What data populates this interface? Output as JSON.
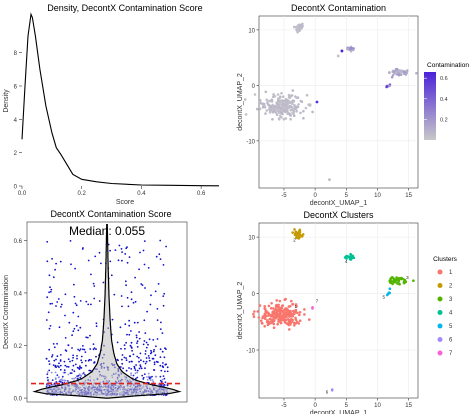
{
  "chart_data": [
    {
      "type": "line",
      "title": "Density, DecontX Contamination Score",
      "xlabel": "Score",
      "ylabel": "Density",
      "xlim": [
        0,
        0.69
      ],
      "ylim": [
        0,
        10.2
      ],
      "xticks": [
        0.0,
        0.2,
        0.4,
        0.6
      ],
      "xtick_labels": [
        "0.0",
        "0.2",
        "0.4",
        "0.6"
      ],
      "yticks": [
        0,
        2,
        4,
        6,
        8
      ],
      "ytick_labels": [
        "0",
        "2",
        "4",
        "6",
        "8"
      ],
      "grid": false,
      "x": [
        0.0,
        0.01,
        0.02,
        0.03,
        0.035,
        0.045,
        0.06,
        0.08,
        0.1,
        0.115,
        0.13,
        0.15,
        0.17,
        0.2,
        0.25,
        0.3,
        0.4,
        0.5,
        0.6,
        0.66
      ],
      "y": [
        2.8,
        6.0,
        9.0,
        10.3,
        10.1,
        9.0,
        7.0,
        4.8,
        3.2,
        2.3,
        1.9,
        1.3,
        0.7,
        0.4,
        0.25,
        0.15,
        0.06,
        0.04,
        0.02,
        0.01
      ]
    },
    {
      "type": "scatter",
      "title": "DecontX Contamination",
      "xlabel": "decontX_UMAP_1",
      "ylabel": "decontX_UMAP_2",
      "xlim": [
        -9,
        16.5
      ],
      "ylim": [
        -18.5,
        12.5
      ],
      "xticks": [
        -5,
        0,
        5,
        10,
        15
      ],
      "xtick_labels": [
        "-5",
        "0",
        "5",
        "10",
        "15"
      ],
      "yticks": [
        -10,
        0,
        10
      ],
      "ytick_labels": [
        "-10",
        "0",
        "10"
      ],
      "grid": true,
      "legend": {
        "title": "Contamination",
        "placement": "right",
        "breaks": [
          "0.6",
          "0.4",
          "0.2"
        ],
        "range": [
          0,
          0.66
        ],
        "colors": [
          "#c8c8c8",
          "#4b22d8"
        ]
      },
      "clusters": [
        {
          "cx": -5.3,
          "cy": -3.7,
          "sx": 1.7,
          "sy": 1.0,
          "n": 220,
          "level": 0.05
        },
        {
          "cx": -2.7,
          "cy": 10.5,
          "sx": 0.3,
          "sy": 0.35,
          "n": 35,
          "level": 0.05
        },
        {
          "cx": 5.6,
          "cy": 6.5,
          "sx": 0.3,
          "sy": 0.25,
          "n": 20,
          "level": 0.18
        },
        {
          "cx": 13.3,
          "cy": 2.3,
          "sx": 0.9,
          "sy": 0.3,
          "n": 45,
          "level": 0.12
        },
        {
          "cx": 11.7,
          "cy": 0.0,
          "sx": 0.25,
          "sy": 0.2,
          "n": 6,
          "level": 0.35
        }
      ],
      "scatter_points": [
        {
          "x": 2.3,
          "y": -17.0,
          "value": 0.05
        },
        {
          "x": 4.3,
          "y": 6.2,
          "value": 0.66
        },
        {
          "x": 11.5,
          "y": -0.2,
          "value": 0.55
        },
        {
          "x": 3.7,
          "y": 5.3,
          "value": 0.02
        },
        {
          "x": 0.3,
          "y": -3.0,
          "value": 0.6
        }
      ]
    },
    {
      "type": "violin",
      "title": "DecontX Contamination Score",
      "annotation": "Median: 0.055",
      "median": 0.055,
      "ylabel": "DecontX Contamination",
      "ylim": [
        -0.015,
        0.67
      ],
      "yticks": [
        0.0,
        0.2,
        0.4,
        0.6
      ],
      "ytick_labels": [
        "0.0",
        "0.2",
        "0.4",
        "0.6"
      ],
      "grid": false,
      "density_y": [
        0.0,
        0.01,
        0.02,
        0.035,
        0.05,
        0.07,
        0.1,
        0.13,
        0.17,
        0.22,
        0.3,
        0.4,
        0.5,
        0.6,
        0.66
      ],
      "density_w": [
        0.02,
        0.45,
        1.0,
        0.85,
        0.6,
        0.35,
        0.2,
        0.13,
        0.09,
        0.06,
        0.04,
        0.025,
        0.015,
        0.008,
        0.004
      ],
      "jitter_points": {
        "count": 1100,
        "spread": 0.8
      }
    },
    {
      "type": "scatter",
      "title": "DecontX Clusters",
      "xlabel": "decontX_UMAP_1",
      "ylabel": "decontX_UMAP_2",
      "xlim": [
        -9,
        16.5
      ],
      "ylim": [
        -18.5,
        12.5
      ],
      "xticks": [
        -5,
        0,
        5,
        10,
        15
      ],
      "xtick_labels": [
        "-5",
        "0",
        "5",
        "10",
        "15"
      ],
      "yticks": [
        -10,
        0,
        10
      ],
      "ytick_labels": [
        "-10",
        "0",
        "10"
      ],
      "grid": true,
      "legend": {
        "title": "Clusters",
        "placement": "right",
        "entries": [
          {
            "label": "1",
            "color": "#f8766d"
          },
          {
            "label": "2",
            "color": "#c49a00"
          },
          {
            "label": "3",
            "color": "#53b400"
          },
          {
            "label": "4",
            "color": "#00c094"
          },
          {
            "label": "5",
            "color": "#00b6eb"
          },
          {
            "label": "6",
            "color": "#a58aff"
          },
          {
            "label": "7",
            "color": "#fb61d7"
          }
        ]
      },
      "clusters": [
        {
          "label": "1",
          "cx": -5.3,
          "cy": -3.7,
          "sx": 1.7,
          "sy": 1.0,
          "n": 240,
          "color": "#f8766d",
          "tx": -3.1,
          "ty": -2.6
        },
        {
          "label": "2",
          "cx": -2.7,
          "cy": 10.5,
          "sx": 0.3,
          "sy": 0.35,
          "n": 35,
          "color": "#c49a00",
          "tx": -3.3,
          "ty": 9.2
        },
        {
          "label": "3",
          "cx": 13.3,
          "cy": 2.3,
          "sx": 0.9,
          "sy": 0.3,
          "n": 45,
          "color": "#53b400",
          "tx": 14.8,
          "ty": 2.6
        },
        {
          "label": "4",
          "cx": 5.6,
          "cy": 6.5,
          "sx": 0.3,
          "sy": 0.25,
          "n": 20,
          "color": "#00c094",
          "tx": 5.0,
          "ty": 5.4
        },
        {
          "label": "5",
          "cx": 11.8,
          "cy": 0.1,
          "sx": 0.2,
          "sy": 0.2,
          "n": 6,
          "color": "#00b6eb",
          "tx": 11.0,
          "ty": -0.9
        },
        {
          "label": "6",
          "cx": 2.6,
          "cy": -17.0,
          "sx": 0.1,
          "sy": 0.1,
          "n": 2,
          "color": "#a58aff",
          "tx": 1.9,
          "ty": -17.7
        },
        {
          "label": "7",
          "cx": -0.3,
          "cy": -2.5,
          "sx": 0.1,
          "sy": 0.1,
          "n": 2,
          "color": "#fb61d7",
          "tx": 0.3,
          "ty": -1.6
        }
      ]
    }
  ]
}
